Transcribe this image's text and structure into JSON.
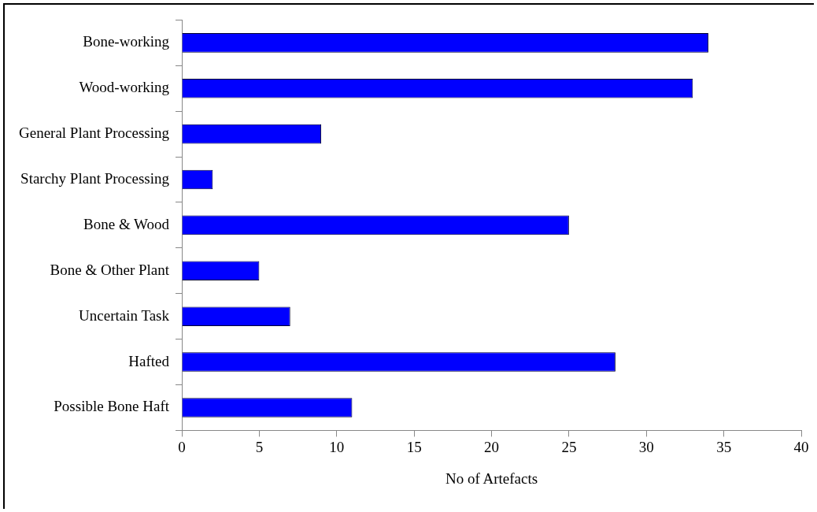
{
  "chart_data": {
    "type": "bar",
    "orientation": "horizontal",
    "xlabel": "No of Artefacts",
    "categories": [
      "Bone-working",
      "Wood-working",
      "General Plant Processing",
      "Starchy Plant Processing",
      "Bone & Wood",
      "Bone & Other Plant",
      "Uncertain Task",
      "Hafted",
      "Possible Bone Haft"
    ],
    "values": [
      34,
      33,
      9,
      2,
      25,
      5,
      7,
      28,
      11
    ],
    "color": "#0000ff",
    "xlim": [
      0,
      40
    ],
    "xticks": [
      0,
      5,
      10,
      15,
      20,
      25,
      30,
      35,
      40
    ],
    "grid": false,
    "legend": false
  }
}
